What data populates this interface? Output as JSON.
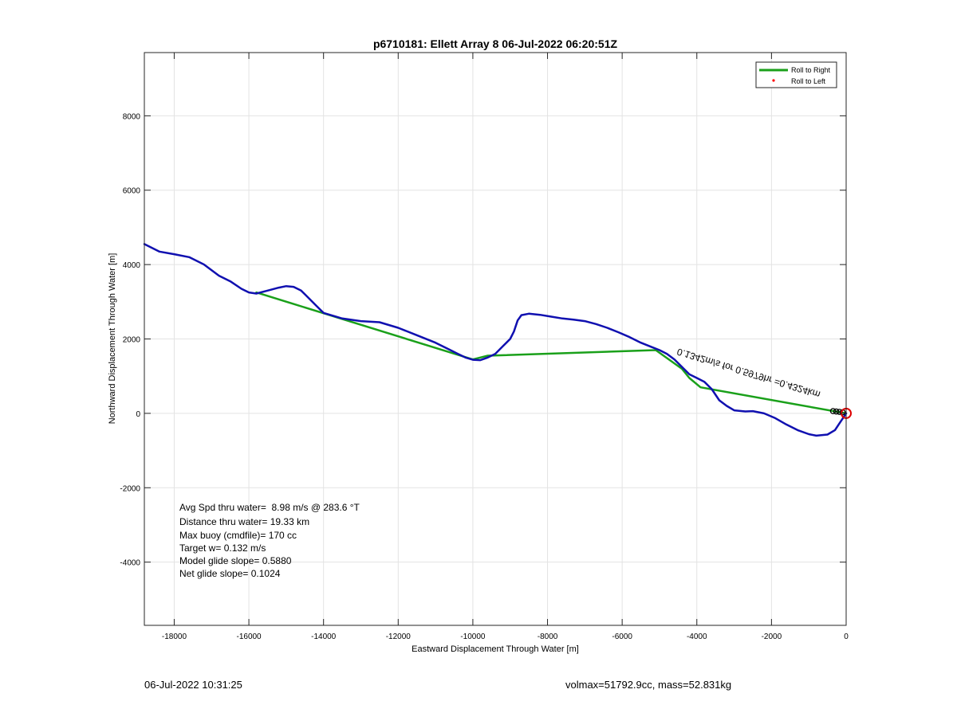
{
  "chart_data": {
    "type": "line",
    "title": "p6710181: Ellett Array 8 06-Jul-2022 06:20:51Z",
    "xlabel": "Eastward Displacement Through Water [m]",
    "ylabel": "Northward Displacement Through Water [m]",
    "xlim": [
      -18800,
      0
    ],
    "ylim": [
      -5700,
      9700
    ],
    "grid": true,
    "xticks": [
      -18000,
      -16000,
      -14000,
      -12000,
      -10000,
      -8000,
      -6000,
      -4000,
      -2000,
      0
    ],
    "yticks": [
      -4000,
      -2000,
      0,
      2000,
      4000,
      6000,
      8000
    ],
    "legend": {
      "position": "top-right",
      "entries": [
        {
          "label": "Roll to Right",
          "color": "#1aa01a",
          "style": "line"
        },
        {
          "label": "Roll to Left",
          "color": "#ff0000",
          "style": "dot"
        }
      ]
    },
    "series": [
      {
        "color": "#1aa01a",
        "x": [
          0,
          -3900,
          -4200,
          -4400,
          -5100,
          -9600,
          -10000,
          -15800
        ],
        "y": [
          0,
          700,
          950,
          1200,
          1700,
          1550,
          1450,
          3250
        ]
      },
      {
        "color": "#1010b0",
        "x": [
          0,
          -100,
          -200,
          -300,
          -500,
          -800,
          -1000,
          -1300,
          -1600,
          -1900,
          -2200,
          -2500,
          -2700,
          -3000,
          -3200,
          -3400,
          -3600,
          -3800,
          -4000,
          -4200,
          -4400,
          -4600,
          -4800,
          -5000,
          -5200,
          -5500,
          -5800,
          -6100,
          -6400,
          -6700,
          -7000,
          -7300,
          -7600,
          -7900,
          -8200,
          -8500,
          -8700,
          -8800,
          -8900,
          -9000,
          -9200,
          -9400,
          -9600,
          -9800,
          -10000,
          -10200,
          -10400,
          -10600,
          -11000,
          -11500,
          -12000,
          -12500,
          -13000,
          -13500,
          -14000,
          -14200,
          -14400,
          -14600,
          -14800,
          -15000,
          -15200,
          -15500,
          -15800,
          -16000,
          -16200,
          -16500,
          -16800,
          -17200,
          -17600,
          -18000,
          -18400,
          -18800
        ],
        "y": [
          0,
          -150,
          -300,
          -450,
          -570,
          -600,
          -560,
          -450,
          -300,
          -130,
          0,
          60,
          50,
          80,
          200,
          350,
          650,
          850,
          950,
          1050,
          1250,
          1450,
          1600,
          1700,
          1780,
          1900,
          2050,
          2180,
          2300,
          2400,
          2480,
          2520,
          2550,
          2600,
          2650,
          2680,
          2640,
          2500,
          2200,
          2000,
          1800,
          1600,
          1500,
          1430,
          1440,
          1500,
          1600,
          1700,
          1900,
          2100,
          2300,
          2450,
          2480,
          2550,
          2700,
          2900,
          3100,
          3300,
          3400,
          3420,
          3380,
          3300,
          3220,
          3250,
          3350,
          3550,
          3700,
          4000,
          4200,
          4280,
          4350,
          4550
        ]
      }
    ],
    "annotations": [
      {
        "text": "0.1342m/s for 0.5979hr =0.4324km",
        "x": -4500,
        "y": 1750,
        "rotation": 197
      },
      {
        "text": "Avg Spd thru water=  8.98 m/s @ 283.6 °T"
      },
      {
        "text": "Distance thru water= 19.33 km"
      },
      {
        "text": "Max buoy (cmdfile)= 170 cc"
      },
      {
        "text": "Target w= 0.132 m/s"
      },
      {
        "text": "Model glide slope= 0.5880"
      },
      {
        "text": "Net glide slope= 0.1024"
      }
    ],
    "marker": {
      "x": 0,
      "y": 0,
      "color": "#dd0000"
    }
  },
  "footer": {
    "timestamp": "06-Jul-2022 10:31:25",
    "info": "volmax=51792.9cc, mass=52.831kg"
  }
}
